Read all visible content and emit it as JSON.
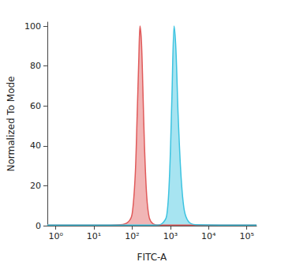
{
  "chart_data": {
    "type": "area",
    "xlabel": "FITC-A",
    "ylabel": "Normalized To Mode",
    "log": "x",
    "grid": false,
    "xlim": [
      0.6,
      180000
    ],
    "xticks": [
      {
        "value": 1,
        "label": "10⁰"
      },
      {
        "value": 10,
        "label": "10¹"
      },
      {
        "value": 100,
        "label": "10²"
      },
      {
        "value": 1000,
        "label": "10³"
      },
      {
        "value": 10000,
        "label": "10⁴"
      },
      {
        "value": 100000,
        "label": "10⁵"
      }
    ],
    "ylim": [
      0,
      102
    ],
    "yticks": [
      0,
      20,
      40,
      60,
      80,
      100
    ],
    "series": [
      {
        "color": "#e05a5a",
        "x": [
          0.6,
          10,
          50,
          80,
          100,
          120,
          135,
          150,
          160,
          175,
          190,
          210,
          240,
          280,
          350,
          500,
          180000
        ],
        "values": [
          0.3,
          0.3,
          0.5,
          2,
          6,
          25,
          55,
          85,
          100,
          92,
          70,
          40,
          15,
          4,
          1,
          0.3,
          0.3
        ]
      },
      {
        "color": "#3cc3e0",
        "x": [
          0.6,
          400,
          600,
          800,
          950,
          1100,
          1250,
          1400,
          1600,
          1900,
          2300,
          3000,
          4500,
          180000
        ],
        "values": [
          0.3,
          0.3,
          1,
          5,
          25,
          65,
          100,
          88,
          55,
          25,
          8,
          2,
          0.5,
          0.3
        ]
      }
    ]
  }
}
